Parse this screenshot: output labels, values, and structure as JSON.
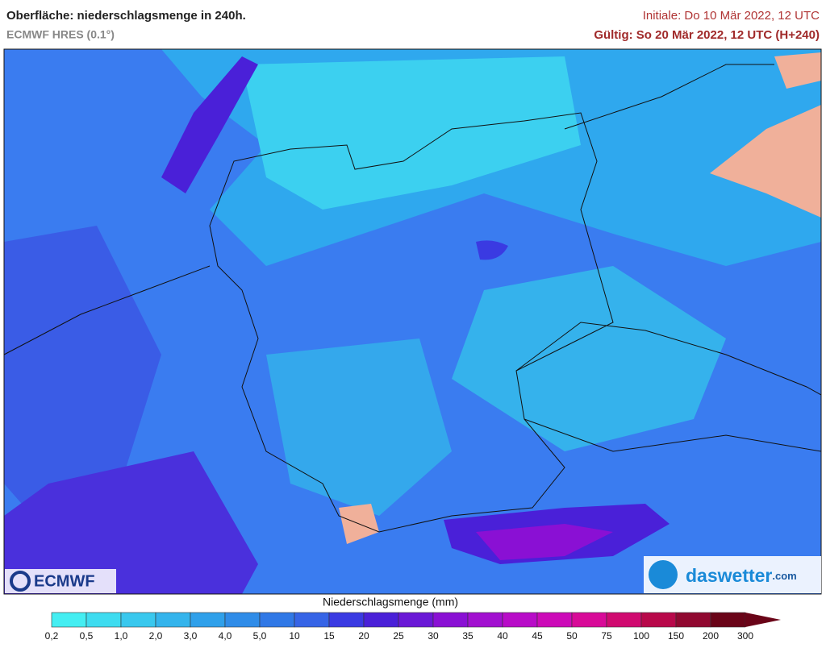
{
  "header": {
    "title": "Oberfläche: niederschlagsmenge in 240h.",
    "subtitle": "ECMWF HRES (0.1°)",
    "initial": "Initiale: Do 10 Mär 2022, 12 UTC",
    "valid": "Gültig: So 20 Mär 2022, 12 UTC (H+240)"
  },
  "logos": {
    "left": "ECMWF",
    "right": "daswetter",
    "right_suffix": ".com"
  },
  "legend": {
    "title": "Niederschlagsmenge (mm)",
    "ticks": [
      "0,2",
      "0,5",
      "1,0",
      "2,0",
      "3,0",
      "4,0",
      "5,0",
      "10",
      "15",
      "20",
      "25",
      "30",
      "35",
      "40",
      "45",
      "50",
      "75",
      "100",
      "150",
      "200",
      "300"
    ],
    "colors": [
      "#44eef2",
      "#3edcf0",
      "#39c8ee",
      "#34b4ec",
      "#2fa0ea",
      "#2f8ce8",
      "#3078e6",
      "#3664e6",
      "#3a3ae2",
      "#4a20d8",
      "#6a18d6",
      "#8a10d4",
      "#a210d0",
      "#b80cc8",
      "#cc0ab8",
      "#d80a98",
      "#d00a70",
      "#b8084a",
      "#900830",
      "#6a0418"
    ]
  }
}
